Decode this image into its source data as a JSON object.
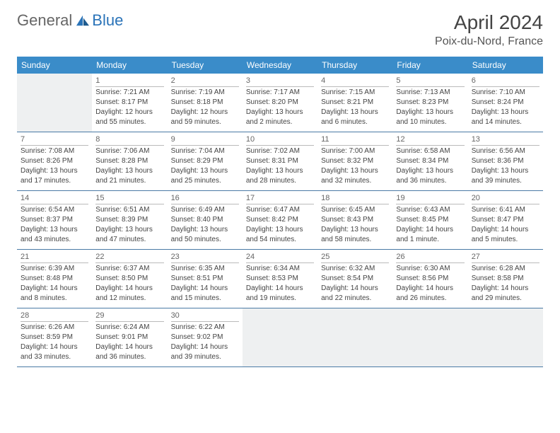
{
  "logo": {
    "text1": "General",
    "text2": "Blue"
  },
  "title": "April 2024",
  "location": "Poix-du-Nord, France",
  "colors": {
    "header_bg": "#3a8cc9",
    "header_text": "#ffffff",
    "row_border": "#4a7aa5",
    "daynum_border": "#bbbbbb",
    "blank_bg": "#eef0f1",
    "text": "#444444",
    "logo_blue": "#2a73b8",
    "logo_gray": "#666666"
  },
  "typography": {
    "month_fontsize": 28,
    "location_fontsize": 16,
    "dow_fontsize": 12,
    "cell_fontsize": 10
  },
  "days_of_week": [
    "Sunday",
    "Monday",
    "Tuesday",
    "Wednesday",
    "Thursday",
    "Friday",
    "Saturday"
  ],
  "weeks": [
    [
      {
        "blank": true
      },
      {
        "num": "1",
        "sunrise": "Sunrise: 7:21 AM",
        "sunset": "Sunset: 8:17 PM",
        "day1": "Daylight: 12 hours",
        "day2": "and 55 minutes."
      },
      {
        "num": "2",
        "sunrise": "Sunrise: 7:19 AM",
        "sunset": "Sunset: 8:18 PM",
        "day1": "Daylight: 12 hours",
        "day2": "and 59 minutes."
      },
      {
        "num": "3",
        "sunrise": "Sunrise: 7:17 AM",
        "sunset": "Sunset: 8:20 PM",
        "day1": "Daylight: 13 hours",
        "day2": "and 2 minutes."
      },
      {
        "num": "4",
        "sunrise": "Sunrise: 7:15 AM",
        "sunset": "Sunset: 8:21 PM",
        "day1": "Daylight: 13 hours",
        "day2": "and 6 minutes."
      },
      {
        "num": "5",
        "sunrise": "Sunrise: 7:13 AM",
        "sunset": "Sunset: 8:23 PM",
        "day1": "Daylight: 13 hours",
        "day2": "and 10 minutes."
      },
      {
        "num": "6",
        "sunrise": "Sunrise: 7:10 AM",
        "sunset": "Sunset: 8:24 PM",
        "day1": "Daylight: 13 hours",
        "day2": "and 14 minutes."
      }
    ],
    [
      {
        "num": "7",
        "sunrise": "Sunrise: 7:08 AM",
        "sunset": "Sunset: 8:26 PM",
        "day1": "Daylight: 13 hours",
        "day2": "and 17 minutes."
      },
      {
        "num": "8",
        "sunrise": "Sunrise: 7:06 AM",
        "sunset": "Sunset: 8:28 PM",
        "day1": "Daylight: 13 hours",
        "day2": "and 21 minutes."
      },
      {
        "num": "9",
        "sunrise": "Sunrise: 7:04 AM",
        "sunset": "Sunset: 8:29 PM",
        "day1": "Daylight: 13 hours",
        "day2": "and 25 minutes."
      },
      {
        "num": "10",
        "sunrise": "Sunrise: 7:02 AM",
        "sunset": "Sunset: 8:31 PM",
        "day1": "Daylight: 13 hours",
        "day2": "and 28 minutes."
      },
      {
        "num": "11",
        "sunrise": "Sunrise: 7:00 AM",
        "sunset": "Sunset: 8:32 PM",
        "day1": "Daylight: 13 hours",
        "day2": "and 32 minutes."
      },
      {
        "num": "12",
        "sunrise": "Sunrise: 6:58 AM",
        "sunset": "Sunset: 8:34 PM",
        "day1": "Daylight: 13 hours",
        "day2": "and 36 minutes."
      },
      {
        "num": "13",
        "sunrise": "Sunrise: 6:56 AM",
        "sunset": "Sunset: 8:36 PM",
        "day1": "Daylight: 13 hours",
        "day2": "and 39 minutes."
      }
    ],
    [
      {
        "num": "14",
        "sunrise": "Sunrise: 6:54 AM",
        "sunset": "Sunset: 8:37 PM",
        "day1": "Daylight: 13 hours",
        "day2": "and 43 minutes."
      },
      {
        "num": "15",
        "sunrise": "Sunrise: 6:51 AM",
        "sunset": "Sunset: 8:39 PM",
        "day1": "Daylight: 13 hours",
        "day2": "and 47 minutes."
      },
      {
        "num": "16",
        "sunrise": "Sunrise: 6:49 AM",
        "sunset": "Sunset: 8:40 PM",
        "day1": "Daylight: 13 hours",
        "day2": "and 50 minutes."
      },
      {
        "num": "17",
        "sunrise": "Sunrise: 6:47 AM",
        "sunset": "Sunset: 8:42 PM",
        "day1": "Daylight: 13 hours",
        "day2": "and 54 minutes."
      },
      {
        "num": "18",
        "sunrise": "Sunrise: 6:45 AM",
        "sunset": "Sunset: 8:43 PM",
        "day1": "Daylight: 13 hours",
        "day2": "and 58 minutes."
      },
      {
        "num": "19",
        "sunrise": "Sunrise: 6:43 AM",
        "sunset": "Sunset: 8:45 PM",
        "day1": "Daylight: 14 hours",
        "day2": "and 1 minute."
      },
      {
        "num": "20",
        "sunrise": "Sunrise: 6:41 AM",
        "sunset": "Sunset: 8:47 PM",
        "day1": "Daylight: 14 hours",
        "day2": "and 5 minutes."
      }
    ],
    [
      {
        "num": "21",
        "sunrise": "Sunrise: 6:39 AM",
        "sunset": "Sunset: 8:48 PM",
        "day1": "Daylight: 14 hours",
        "day2": "and 8 minutes."
      },
      {
        "num": "22",
        "sunrise": "Sunrise: 6:37 AM",
        "sunset": "Sunset: 8:50 PM",
        "day1": "Daylight: 14 hours",
        "day2": "and 12 minutes."
      },
      {
        "num": "23",
        "sunrise": "Sunrise: 6:35 AM",
        "sunset": "Sunset: 8:51 PM",
        "day1": "Daylight: 14 hours",
        "day2": "and 15 minutes."
      },
      {
        "num": "24",
        "sunrise": "Sunrise: 6:34 AM",
        "sunset": "Sunset: 8:53 PM",
        "day1": "Daylight: 14 hours",
        "day2": "and 19 minutes."
      },
      {
        "num": "25",
        "sunrise": "Sunrise: 6:32 AM",
        "sunset": "Sunset: 8:54 PM",
        "day1": "Daylight: 14 hours",
        "day2": "and 22 minutes."
      },
      {
        "num": "26",
        "sunrise": "Sunrise: 6:30 AM",
        "sunset": "Sunset: 8:56 PM",
        "day1": "Daylight: 14 hours",
        "day2": "and 26 minutes."
      },
      {
        "num": "27",
        "sunrise": "Sunrise: 6:28 AM",
        "sunset": "Sunset: 8:58 PM",
        "day1": "Daylight: 14 hours",
        "day2": "and 29 minutes."
      }
    ],
    [
      {
        "num": "28",
        "sunrise": "Sunrise: 6:26 AM",
        "sunset": "Sunset: 8:59 PM",
        "day1": "Daylight: 14 hours",
        "day2": "and 33 minutes."
      },
      {
        "num": "29",
        "sunrise": "Sunrise: 6:24 AM",
        "sunset": "Sunset: 9:01 PM",
        "day1": "Daylight: 14 hours",
        "day2": "and 36 minutes."
      },
      {
        "num": "30",
        "sunrise": "Sunrise: 6:22 AM",
        "sunset": "Sunset: 9:02 PM",
        "day1": "Daylight: 14 hours",
        "day2": "and 39 minutes."
      },
      {
        "blank": true
      },
      {
        "blank": true
      },
      {
        "blank": true
      },
      {
        "blank": true
      }
    ]
  ]
}
